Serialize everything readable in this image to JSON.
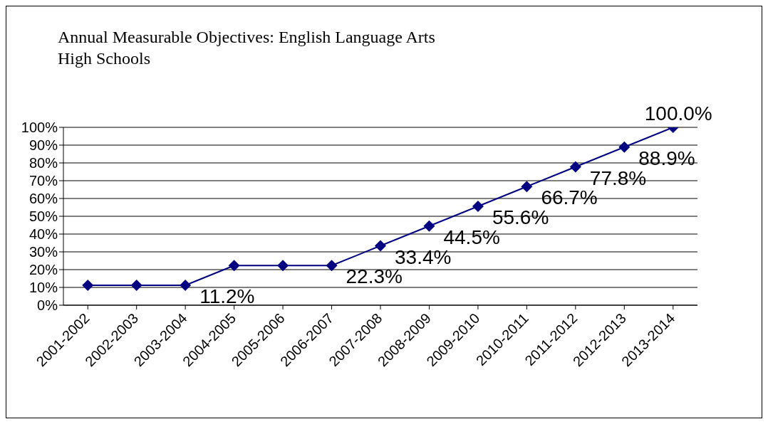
{
  "chart_data": {
    "type": "line",
    "title": "Annual Measurable Objectives: English Language Arts",
    "subtitle": "High Schools",
    "categories": [
      "2001-2002",
      "2002-2003",
      "2003-2004",
      "2004-2005",
      "2005-2006",
      "2006-2007",
      "2007-2008",
      "2008-2009",
      "2009-2010",
      "2010-2011",
      "2011-2012",
      "2012-2013",
      "2013-2014"
    ],
    "series": [
      {
        "color": "#000080",
        "values": [
          11.2,
          11.2,
          11.2,
          22.3,
          22.3,
          22.3,
          33.4,
          44.5,
          55.6,
          66.7,
          77.8,
          88.9,
          100.0
        ],
        "value_labels": [
          null,
          null,
          "11.2%",
          null,
          null,
          "22.3%",
          "33.4%",
          "44.5%",
          "55.6%",
          "66.7%",
          "77.8%",
          "88.9%",
          "100.0%"
        ]
      }
    ],
    "ylim": [
      0,
      100
    ],
    "yticks": [
      {
        "value": 0,
        "label": "0%"
      },
      {
        "value": 10,
        "label": "10%"
      },
      {
        "value": 20,
        "label": "20%"
      },
      {
        "value": 30,
        "label": "30%"
      },
      {
        "value": 40,
        "label": "40%"
      },
      {
        "value": 50,
        "label": "50%"
      },
      {
        "value": 60,
        "label": "60%"
      },
      {
        "value": 70,
        "label": "70%"
      },
      {
        "value": 80,
        "label": "80%"
      },
      {
        "value": 90,
        "label": "90%"
      },
      {
        "value": 100,
        "label": "100%"
      }
    ],
    "grid": "y",
    "legend": false,
    "marker": "diamond",
    "line_style": "solid"
  }
}
